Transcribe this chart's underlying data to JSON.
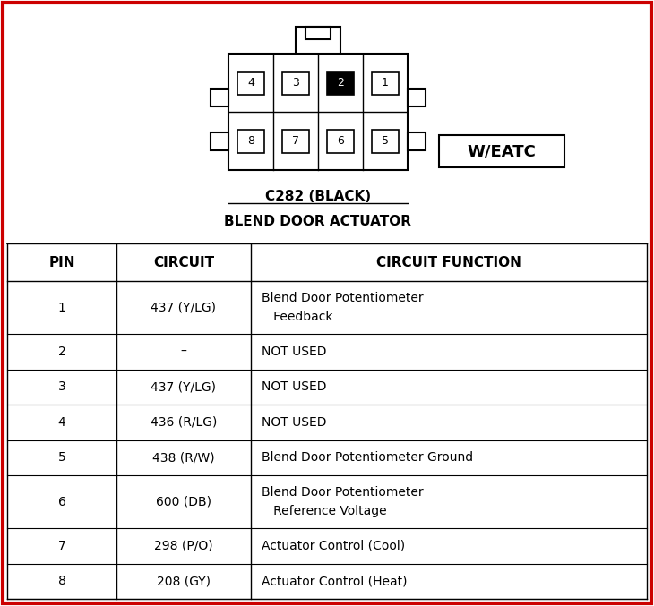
{
  "title_line1": "C282 (BLACK)",
  "title_line2": "BLEND DOOR ACTUATOR",
  "weatc_label": "W/EATC",
  "bg_color": "#ffffff",
  "border_color": "#cc0000",
  "table_header": [
    "PIN",
    "CIRCUIT",
    "CIRCUIT FUNCTION"
  ],
  "table_rows": [
    [
      "1",
      "437 (Y/LG)",
      "Blend Door Potentiometer\n   Feedback"
    ],
    [
      "2",
      "–",
      "NOT USED"
    ],
    [
      "3",
      "437 (Y/LG)",
      "NOT USED"
    ],
    [
      "4",
      "436 (R/LG)",
      "NOT USED"
    ],
    [
      "5",
      "438 (R/W)",
      "Blend Door Potentiometer Ground"
    ],
    [
      "6",
      "600 (DB)",
      "Blend Door Potentiometer\n   Reference Voltage"
    ],
    [
      "7",
      "298 (P/O)",
      "Actuator Control (Cool)"
    ],
    [
      "8",
      "208 (GY)",
      "Actuator Control (Heat)"
    ]
  ],
  "pins_top_row": [
    "4",
    "3",
    "2",
    "1"
  ],
  "pins_bottom_row": [
    "8",
    "7",
    "6",
    "5"
  ],
  "black_pin": "2",
  "fig_width": 7.3,
  "fig_height": 6.77,
  "dpi": 100
}
